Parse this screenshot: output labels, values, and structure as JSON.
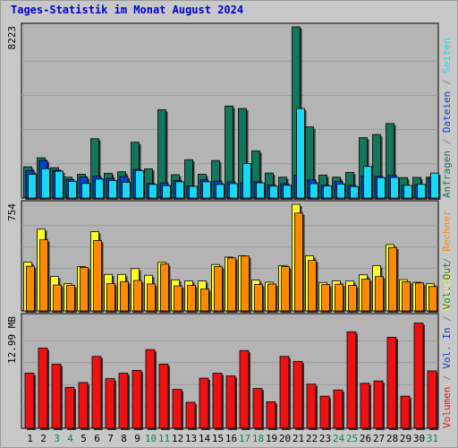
{
  "title": "Tages-Statistik im Monat August 2024",
  "colors": {
    "panel_bg": "#b4b4b4",
    "frame_bg": "#c8c8c8",
    "anfragen": "#11765a",
    "dateien": "#0044d0",
    "seiten": "#18d8f6",
    "besuche": "#ffff20",
    "rechner": "#ff8a00",
    "volumen": "#ee1111",
    "separator": "#808080",
    "weekday_label": "#000000",
    "weekend_label": "#008844"
  },
  "chart_data": [
    {
      "type": "bar",
      "ymax_label": "8223",
      "ylim": [
        0,
        8223
      ],
      "categories": [
        "1",
        "2",
        "3",
        "4",
        "5",
        "6",
        "7",
        "8",
        "9",
        "10",
        "11",
        "12",
        "13",
        "14",
        "15",
        "16",
        "17",
        "18",
        "19",
        "20",
        "21",
        "22",
        "23",
        "24",
        "25",
        "26",
        "27",
        "28",
        "29",
        "30",
        "31"
      ],
      "weekend_days": [
        "3",
        "4",
        "10",
        "11",
        "17",
        "18",
        "24",
        "25",
        "31"
      ],
      "legend": [
        {
          "text": "Anfragen",
          "color_key": "anfragen"
        },
        {
          "text": "Dateien",
          "color_key": "dateien"
        },
        {
          "text": "Seiten",
          "color_key": "seiten"
        }
      ],
      "series": [
        {
          "name": "Anfragen",
          "color_key": "anfragen",
          "values": [
            1500,
            1930,
            1460,
            1000,
            1140,
            2850,
            1190,
            1260,
            2680,
            1400,
            4240,
            1120,
            1840,
            1140,
            1800,
            4420,
            4300,
            2270,
            1200,
            1000,
            8223,
            3420,
            1100,
            1000,
            1230,
            2900,
            3050,
            3580,
            980,
            990,
            1000
          ]
        },
        {
          "name": "Dateien",
          "color_key": "dateien",
          "values": [
            1320,
            1800,
            1330,
            880,
            1000,
            1050,
            940,
            1040,
            1370,
            700,
            720,
            840,
            570,
            870,
            810,
            770,
            730,
            780,
            620,
            680,
            1100,
            870,
            610,
            800,
            610,
            1060,
            1040,
            1100,
            610,
            640,
            980
          ]
        },
        {
          "name": "Seiten",
          "color_key": "seiten",
          "values": [
            1140,
            1410,
            1290,
            790,
            700,
            910,
            840,
            760,
            1320,
            650,
            600,
            780,
            560,
            780,
            650,
            690,
            1650,
            730,
            570,
            610,
            4300,
            690,
            580,
            670,
            550,
            1520,
            980,
            990,
            610,
            660,
            1200
          ]
        }
      ]
    },
    {
      "type": "bar",
      "ymax_label": "754",
      "ylim": [
        0,
        754
      ],
      "categories": [
        "1",
        "2",
        "3",
        "4",
        "5",
        "6",
        "7",
        "8",
        "9",
        "10",
        "11",
        "12",
        "13",
        "14",
        "15",
        "16",
        "17",
        "18",
        "19",
        "20",
        "21",
        "22",
        "23",
        "24",
        "25",
        "26",
        "27",
        "28",
        "29",
        "30",
        "31"
      ],
      "legend": [
        {
          "text": "Besuche",
          "color_key": "besuche"
        },
        {
          "text": "Rechner",
          "color_key": "rechner"
        }
      ],
      "series": [
        {
          "name": "Besuche",
          "color_key": "besuche",
          "values": [
            345,
            578,
            243,
            192,
            314,
            560,
            258,
            258,
            299,
            252,
            344,
            220,
            212,
            212,
            328,
            380,
            390,
            218,
            203,
            321,
            754,
            390,
            201,
            212,
            211,
            255,
            320,
            469,
            221,
            202,
            192
          ]
        },
        {
          "name": "Rechner",
          "color_key": "rechner",
          "values": [
            316,
            503,
            183,
            180,
            308,
            498,
            194,
            207,
            215,
            191,
            331,
            177,
            181,
            155,
            313,
            375,
            388,
            187,
            190,
            313,
            692,
            357,
            186,
            189,
            180,
            225,
            243,
            449,
            206,
            198,
            173
          ]
        }
      ]
    },
    {
      "type": "bar",
      "ymax_label": "12.99 MB",
      "ylim": [
        0,
        12.99
      ],
      "unit": "MB",
      "categories": [
        "1",
        "2",
        "3",
        "4",
        "5",
        "6",
        "7",
        "8",
        "9",
        "10",
        "11",
        "12",
        "13",
        "14",
        "15",
        "16",
        "17",
        "18",
        "19",
        "20",
        "21",
        "22",
        "23",
        "24",
        "25",
        "26",
        "27",
        "28",
        "29",
        "30",
        "31"
      ],
      "legend": [
        {
          "text": "Volumen",
          "color_key": "volumen"
        },
        {
          "text": "Vol. In",
          "color_key": "dateien"
        },
        {
          "text": "Vol. Out",
          "color_key": "anfragen"
        }
      ],
      "series": [
        {
          "name": "Volumen",
          "color_key": "volumen",
          "values": [
            6.55,
            9.53,
            7.62,
            4.87,
            5.44,
            8.54,
            5.9,
            6.55,
            6.88,
            9.35,
            7.62,
            4.62,
            3.09,
            5.96,
            6.55,
            6.22,
            9.24,
            4.73,
            3.15,
            8.54,
            7.95,
            5.25,
            3.82,
            4.55,
            11.46,
            5.35,
            5.62,
            10.81,
            3.82,
            12.5,
            6.82
          ]
        }
      ]
    }
  ]
}
